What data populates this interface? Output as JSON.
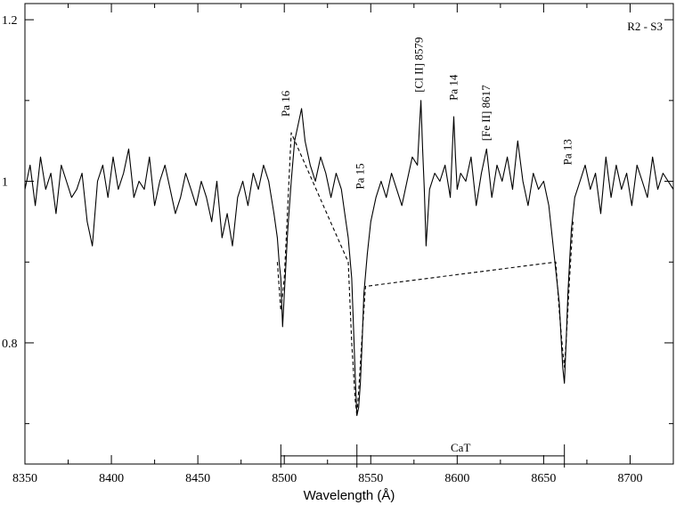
{
  "chart_data": {
    "type": "line",
    "title": "",
    "panel_label": "R2 - S3",
    "xlabel": "Wavelength  (Å)",
    "ylabel": "",
    "xlim": [
      8350,
      8725
    ],
    "ylim": [
      0.65,
      1.22
    ],
    "x_ticks": [
      8350,
      8400,
      8450,
      8500,
      8550,
      8600,
      8650,
      8700
    ],
    "x_tick_labels": [
      "8350",
      "8400",
      "8450",
      "8500",
      "8550",
      "8600",
      "8650",
      "8700"
    ],
    "y_ticks_major": [
      0.8,
      1.0,
      1.2
    ],
    "y_tick_labels": [
      "0.8",
      "1",
      "1.2"
    ],
    "y_ticks_minor": [
      0.7,
      0.9,
      1.1
    ],
    "grid": false,
    "series": [
      {
        "style": "solid",
        "x": [
          8350,
          8353,
          8356,
          8359,
          8362,
          8365,
          8368,
          8371,
          8374,
          8377,
          8380,
          8383,
          8386,
          8389,
          8392,
          8395,
          8398,
          8401,
          8404,
          8407,
          8410,
          8413,
          8416,
          8419,
          8422,
          8425,
          8428,
          8431,
          8434,
          8437,
          8440,
          8443,
          8446,
          8449,
          8452,
          8455,
          8458,
          8461,
          8464,
          8467,
          8470,
          8473,
          8476,
          8479,
          8482,
          8485,
          8488,
          8491,
          8494,
          8496,
          8497,
          8498,
          8499,
          8500,
          8502,
          8504,
          8506,
          8508,
          8510,
          8512,
          8515,
          8518,
          8521,
          8524,
          8527,
          8530,
          8533,
          8535,
          8537,
          8539,
          8540,
          8541,
          8542,
          8543,
          8544,
          8545,
          8546,
          8548,
          8550,
          8553,
          8556,
          8559,
          8562,
          8565,
          8568,
          8571,
          8574,
          8577,
          8578,
          8579,
          8580,
          8581,
          8582,
          8584,
          8587,
          8590,
          8593,
          8596,
          8597,
          8598,
          8599,
          8600,
          8602,
          8605,
          8608,
          8611,
          8614,
          8617,
          8620,
          8623,
          8626,
          8629,
          8632,
          8635,
          8638,
          8641,
          8644,
          8647,
          8650,
          8653,
          8655,
          8657,
          8659,
          8660,
          8661,
          8662,
          8663,
          8664,
          8665,
          8666,
          8668,
          8671,
          8674,
          8677,
          8680,
          8683,
          8686,
          8689,
          8692,
          8695,
          8698,
          8701,
          8704,
          8707,
          8710,
          8713,
          8716,
          8719,
          8722,
          8725
        ],
        "y": [
          0.99,
          1.02,
          0.97,
          1.03,
          0.99,
          1.01,
          0.96,
          1.02,
          1.0,
          0.98,
          0.99,
          1.01,
          0.95,
          0.92,
          1.0,
          1.02,
          0.98,
          1.03,
          0.99,
          1.01,
          1.04,
          0.98,
          1.0,
          0.99,
          1.03,
          0.97,
          1.0,
          1.02,
          0.99,
          0.96,
          0.98,
          1.01,
          0.99,
          0.97,
          1.0,
          0.98,
          0.95,
          1.0,
          0.93,
          0.96,
          0.92,
          0.98,
          1.0,
          0.97,
          1.01,
          0.99,
          1.02,
          1.0,
          0.96,
          0.93,
          0.9,
          0.88,
          0.82,
          0.86,
          0.94,
          1.0,
          1.05,
          1.07,
          1.09,
          1.05,
          1.02,
          1.0,
          1.03,
          1.01,
          0.98,
          1.01,
          0.99,
          0.96,
          0.93,
          0.88,
          0.82,
          0.76,
          0.71,
          0.72,
          0.75,
          0.8,
          0.86,
          0.91,
          0.95,
          0.98,
          1.0,
          0.98,
          1.01,
          0.99,
          0.97,
          1.0,
          1.03,
          1.02,
          1.06,
          1.1,
          1.04,
          0.99,
          0.92,
          0.99,
          1.01,
          1.0,
          1.02,
          0.98,
          1.03,
          1.08,
          1.03,
          0.99,
          1.01,
          1.0,
          1.03,
          0.97,
          1.01,
          1.04,
          0.98,
          1.02,
          1.0,
          1.03,
          0.99,
          1.05,
          1.0,
          0.97,
          1.01,
          0.99,
          1.0,
          0.97,
          0.93,
          0.89,
          0.85,
          0.81,
          0.77,
          0.75,
          0.8,
          0.86,
          0.9,
          0.94,
          0.98,
          1.0,
          1.02,
          0.99,
          1.01,
          0.96,
          1.03,
          0.98,
          1.02,
          0.99,
          1.01,
          0.97,
          1.02,
          1.0,
          0.98,
          1.03,
          0.99,
          1.01,
          1.0,
          0.99
        ]
      },
      {
        "style": "dashed",
        "x": [
          8496,
          8498,
          8500,
          8502,
          8504,
          8537,
          8539,
          8541,
          8542,
          8543,
          8545,
          8547,
          8657,
          8659,
          8661,
          8662,
          8663,
          8665,
          8667
        ],
        "y": [
          0.9,
          0.84,
          0.88,
          0.97,
          1.06,
          0.9,
          0.8,
          0.73,
          0.71,
          0.74,
          0.81,
          0.87,
          0.9,
          0.84,
          0.79,
          0.77,
          0.8,
          0.88,
          0.95
        ]
      }
    ],
    "line_annotations": [
      {
        "label": "Pa 16",
        "x": 8503,
        "y": 1.08
      },
      {
        "label": "Pa 15",
        "x": 8546,
        "y": 0.99
      },
      {
        "label": "[Cl II] 8579",
        "x": 8580,
        "y": 1.11
      },
      {
        "label": "Pa 14",
        "x": 8600,
        "y": 1.1
      },
      {
        "label": "[Fe II] 8617",
        "x": 8619,
        "y": 1.05
      },
      {
        "label": "Pa 13",
        "x": 8666,
        "y": 1.02
      }
    ],
    "cat_bracket": {
      "label": "CaT",
      "lines": [
        8498,
        8542,
        8662
      ],
      "y": 0.66
    }
  }
}
